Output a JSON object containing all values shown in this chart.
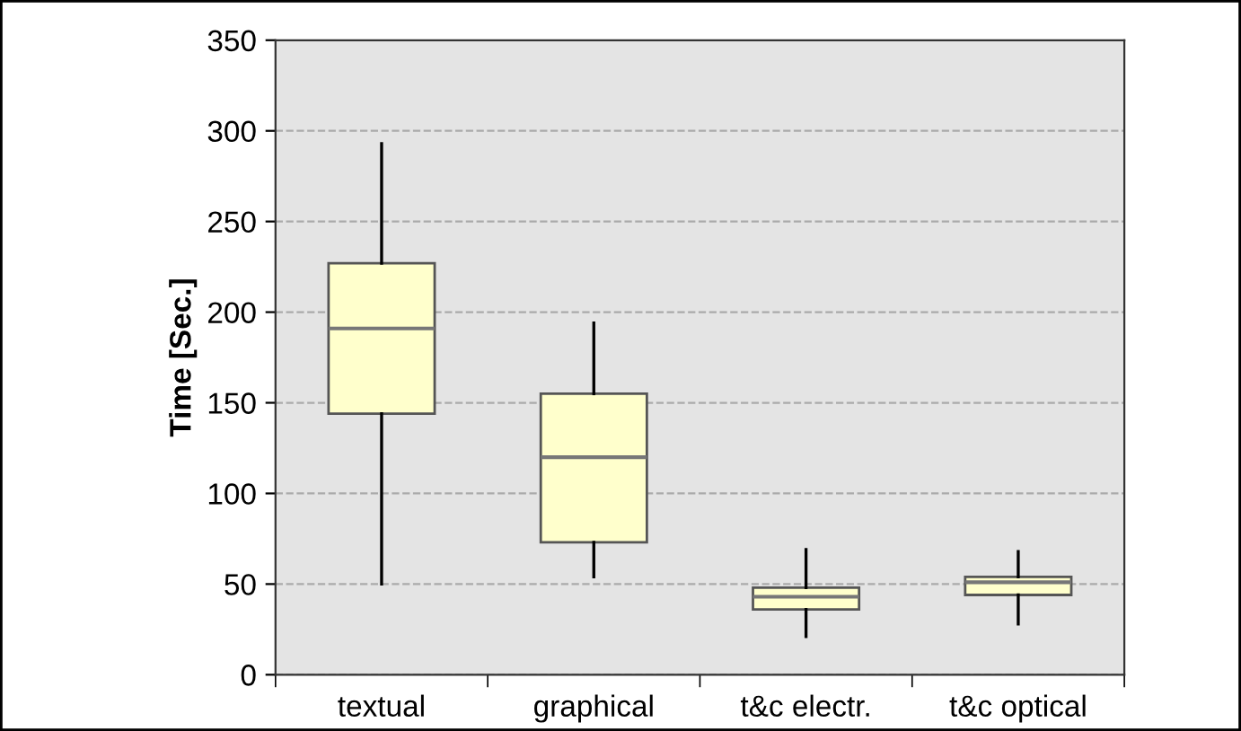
{
  "chart_data": {
    "type": "box",
    "ylabel": "Time [Sec.]",
    "categories": [
      "textual",
      "graphical",
      "t&c electr.",
      "t&c optical"
    ],
    "boxes": [
      {
        "low": 50,
        "q1": 144,
        "median": 191,
        "q3": 227,
        "high": 293
      },
      {
        "low": 54,
        "q1": 73,
        "median": 120,
        "q3": 155,
        "high": 194
      },
      {
        "low": 21,
        "q1": 36,
        "median": 43,
        "q3": 48,
        "high": 69
      },
      {
        "low": 28,
        "q1": 44,
        "median": 51,
        "q3": 54,
        "high": 68
      }
    ],
    "color": "#ffffcc",
    "ylim": [
      0,
      350
    ],
    "yticks": [
      0,
      50,
      100,
      150,
      200,
      250,
      300,
      350
    ],
    "grid": "y",
    "line_style": "dashed"
  }
}
